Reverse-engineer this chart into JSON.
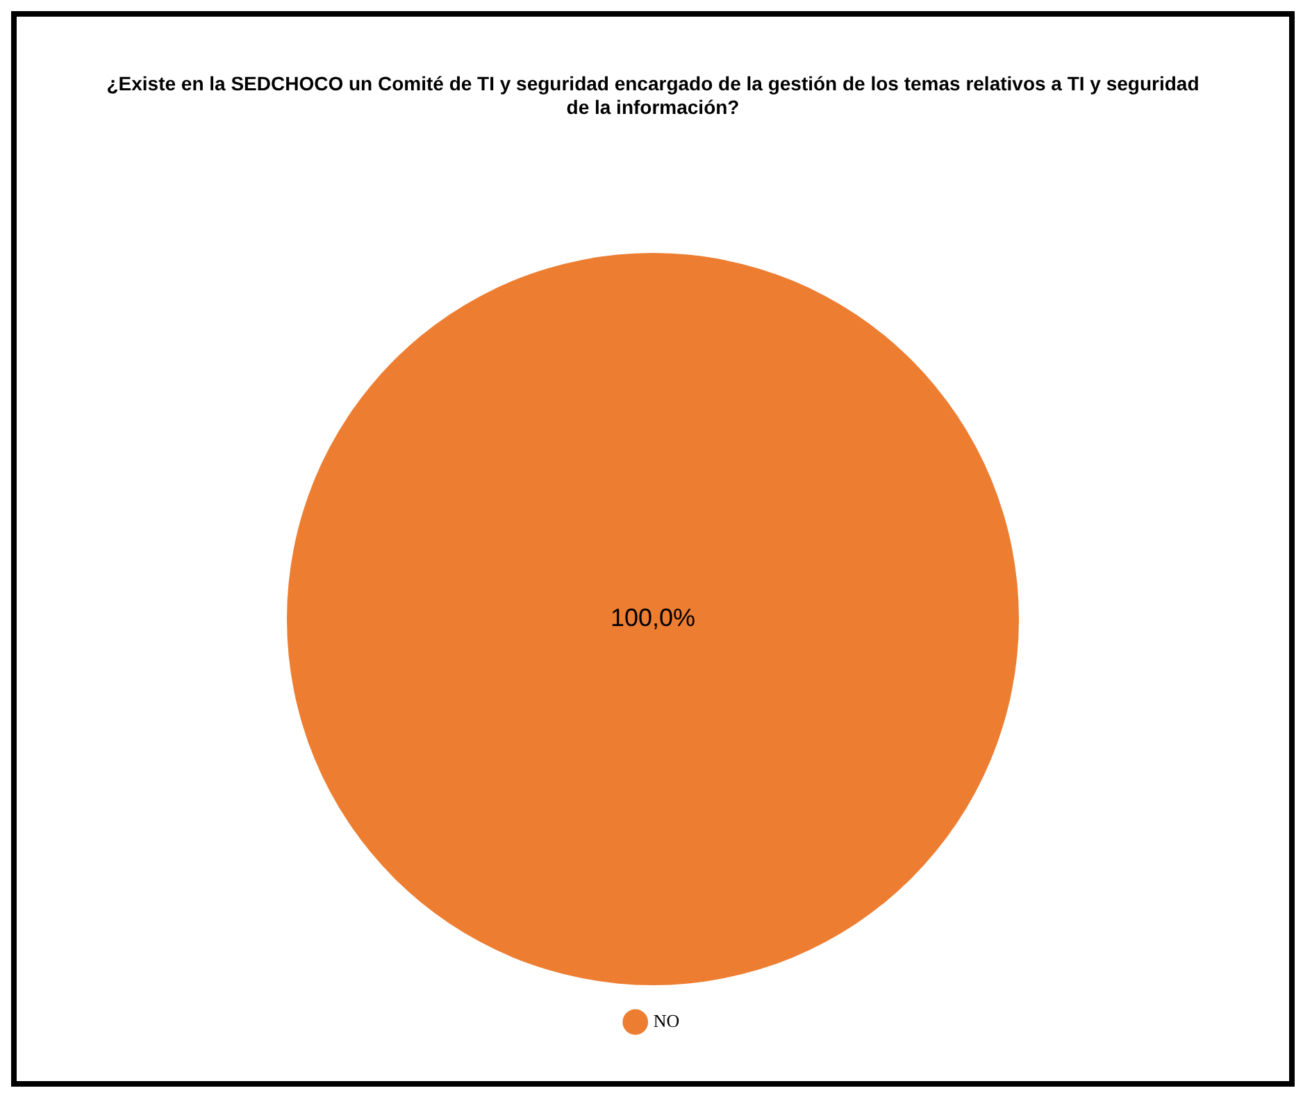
{
  "chart_data": {
    "type": "pie",
    "title": "¿Existe en la SEDCHOCO un Comité de TI y seguridad encargado de la gestión de los temas relativos a TI y seguridad de la información?",
    "categories": [
      "NO"
    ],
    "values": [
      100
    ],
    "colors": [
      "#ed7d31"
    ],
    "value_labels": [
      "100,0%"
    ],
    "legend": "bottom"
  }
}
